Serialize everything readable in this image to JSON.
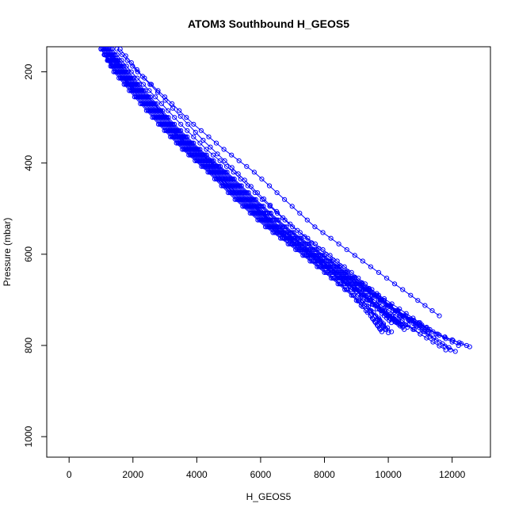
{
  "chart_data": {
    "type": "line",
    "title": "ATOM3 Southbound H_GEOS5",
    "xlabel": "H_GEOS5",
    "ylabel": "Pressure (mbar)",
    "xlim": [
      -700,
      13200
    ],
    "ylim": [
      1045,
      145
    ],
    "y_reversed": true,
    "x_ticks": [
      0,
      2000,
      4000,
      6000,
      8000,
      10000,
      12000
    ],
    "y_ticks": [
      200,
      400,
      600,
      800,
      1000
    ],
    "grid": false,
    "legend": "none",
    "series_color": "#0000ff",
    "markers": "open-circle",
    "series": [
      {
        "x": [
          1000,
          1500,
          2200,
          2950,
          3700,
          4500,
          5400,
          6350,
          7350,
          8400,
          9500,
          10500,
          11500,
          12550
        ],
        "y": [
          150,
          200,
          255,
          315,
          370,
          420,
          480,
          540,
          590,
          640,
          690,
          735,
          775,
          803
        ]
      },
      {
        "x": [
          1050,
          1550,
          2250,
          3000,
          3750,
          4550,
          5450,
          6400,
          7400,
          8450,
          9550,
          10550,
          11550,
          12450
        ],
        "y": [
          150,
          200,
          255,
          315,
          370,
          420,
          480,
          540,
          590,
          640,
          690,
          735,
          775,
          800
        ]
      },
      {
        "x": [
          1100,
          1650,
          2350,
          3100,
          3900,
          4700,
          5600,
          6550,
          7500,
          8500,
          9550,
          10500,
          11300,
          12100
        ],
        "y": [
          150,
          200,
          255,
          315,
          370,
          420,
          480,
          540,
          590,
          640,
          690,
          735,
          780,
          813
        ]
      },
      {
        "x": [
          1150,
          1700,
          2400,
          3150,
          3950,
          4800,
          5700,
          6600,
          7550,
          8550,
          9500,
          10450,
          11250,
          11950
        ],
        "y": [
          150,
          200,
          255,
          315,
          370,
          420,
          480,
          540,
          590,
          640,
          690,
          735,
          775,
          810
        ]
      },
      {
        "x": [
          1000,
          1450,
          2100,
          2850,
          3600,
          4400,
          5300,
          6250,
          7250,
          8200,
          9200,
          10100,
          11000,
          11800
        ],
        "y": [
          150,
          200,
          255,
          315,
          370,
          420,
          480,
          540,
          590,
          640,
          690,
          735,
          775,
          810
        ]
      },
      {
        "x": [
          1200,
          1750,
          2450,
          3200,
          4000,
          4850,
          5750,
          6700,
          7650,
          8600,
          9550,
          10450,
          11250
        ],
        "y": [
          150,
          200,
          255,
          315,
          370,
          420,
          480,
          540,
          590,
          640,
          690,
          735,
          770
        ]
      },
      {
        "x": [
          1100,
          1600,
          2300,
          3050,
          3850,
          4650,
          5550,
          6500,
          7450,
          8400,
          9350,
          10250,
          11000
        ],
        "y": [
          150,
          200,
          255,
          315,
          370,
          420,
          480,
          540,
          590,
          640,
          690,
          735,
          775
        ]
      },
      {
        "x": [
          1250,
          1800,
          2500,
          3250,
          4050,
          4900,
          5800,
          6750,
          7700,
          8650,
          9600,
          10450,
          11150
        ],
        "y": [
          150,
          200,
          255,
          315,
          370,
          420,
          480,
          540,
          590,
          640,
          690,
          735,
          770
        ]
      },
      {
        "x": [
          1000,
          1500,
          2150,
          2900,
          3650,
          4450,
          5350,
          6300,
          7300,
          8250,
          9200,
          10050,
          10600
        ],
        "y": [
          150,
          200,
          255,
          315,
          370,
          420,
          480,
          540,
          590,
          640,
          690,
          735,
          760
        ]
      },
      {
        "x": [
          1150,
          1650,
          2350,
          3100,
          3900,
          4700,
          5600,
          6500,
          7450,
          8350,
          9250,
          10000,
          10500
        ],
        "y": [
          150,
          200,
          255,
          315,
          370,
          420,
          480,
          540,
          590,
          640,
          690,
          735,
          765
        ]
      },
      {
        "x": [
          1050,
          1550,
          2200,
          2950,
          3700,
          4500,
          5400,
          6350,
          7300,
          8250,
          9150,
          9900,
          10400
        ],
        "y": [
          150,
          200,
          255,
          315,
          370,
          420,
          480,
          540,
          590,
          640,
          690,
          730,
          755
        ]
      },
      {
        "x": [
          1200,
          1700,
          2400,
          3150,
          3950,
          4750,
          5650,
          6550,
          7500,
          8400,
          9300,
          9950,
          10300
        ],
        "y": [
          150,
          200,
          255,
          315,
          370,
          420,
          480,
          540,
          590,
          640,
          690,
          730,
          750
        ]
      },
      {
        "x": [
          1000,
          1450,
          2100,
          2850,
          3600,
          4400,
          5250,
          6200,
          7150,
          8050,
          8900,
          9600,
          10100
        ],
        "y": [
          150,
          200,
          255,
          315,
          370,
          420,
          480,
          540,
          590,
          640,
          690,
          735,
          770
        ]
      },
      {
        "x": [
          1100,
          1600,
          2300,
          3050,
          3800,
          4600,
          5500,
          6450,
          7350,
          8200,
          9050,
          9700,
          10000
        ],
        "y": [
          150,
          200,
          255,
          315,
          370,
          420,
          480,
          540,
          590,
          640,
          690,
          740,
          772
        ]
      },
      {
        "x": [
          1050,
          1500,
          2200,
          2950,
          3700,
          4500,
          5350,
          6300,
          7200,
          8100,
          8900,
          9500,
          9800
        ],
        "y": [
          150,
          200,
          255,
          315,
          370,
          420,
          480,
          540,
          590,
          640,
          690,
          740,
          770
        ]
      },
      {
        "x": [
          1250,
          1750,
          2450,
          3200,
          4000,
          4800,
          5700,
          6600,
          7500,
          8400,
          9200,
          9800,
          10100
        ],
        "y": [
          150,
          200,
          255,
          315,
          370,
          420,
          480,
          540,
          590,
          640,
          690,
          730,
          750
        ]
      },
      {
        "x": [
          1150,
          1650,
          2350,
          3100,
          3850,
          4650,
          5550,
          6450,
          7350,
          8250,
          9050,
          9600,
          9900
        ],
        "y": [
          150,
          200,
          255,
          315,
          370,
          420,
          480,
          540,
          590,
          640,
          690,
          735,
          765
        ]
      },
      {
        "x": [
          1300,
          1850,
          2550,
          3300,
          4100,
          4950,
          5850,
          6800,
          7750,
          8700,
          9650,
          10500,
          11400,
          12200
        ],
        "y": [
          150,
          200,
          255,
          315,
          370,
          420,
          480,
          540,
          590,
          640,
          690,
          735,
          770,
          800
        ]
      },
      {
        "x": [
          1000,
          1400,
          2050,
          2800,
          3550,
          4350,
          5200,
          6150,
          7100,
          8000,
          8850,
          9450,
          9750
        ],
        "y": [
          150,
          200,
          255,
          315,
          370,
          420,
          480,
          540,
          590,
          640,
          690,
          735,
          765
        ]
      },
      {
        "x": [
          1100,
          1600,
          2250,
          3000,
          3800,
          4600,
          5450,
          6400,
          7350,
          8300,
          9200,
          9950,
          10450
        ],
        "y": [
          150,
          200,
          255,
          315,
          370,
          420,
          480,
          540,
          590,
          640,
          690,
          735,
          760
        ]
      },
      {
        "x": [
          1500,
          2150,
          3000,
          3900,
          4850,
          5800,
          6750,
          7700,
          8700,
          9700,
          10700,
          11600
        ],
        "y": [
          150,
          200,
          255,
          315,
          370,
          420,
          480,
          540,
          590,
          640,
          690,
          735
        ]
      },
      {
        "x": [
          1200,
          1750,
          2450,
          3250,
          4050,
          4900,
          5800,
          6750,
          7700,
          8650,
          9550,
          10350,
          10950
        ],
        "y": [
          150,
          200,
          255,
          315,
          370,
          420,
          480,
          540,
          590,
          640,
          690,
          735,
          750
        ]
      },
      {
        "x": [
          1600,
          2300,
          3250,
          4200,
          5100,
          5900,
          6700,
          7600,
          8500,
          9400,
          10350,
          11200
        ],
        "y": [
          150,
          210,
          280,
          350,
          410,
          465,
          520,
          575,
          625,
          675,
          720,
          760
        ]
      },
      {
        "x": [
          1350,
          1950,
          2700,
          3500,
          4300,
          5150,
          6050,
          7000,
          7950,
          8850,
          9700,
          10400
        ],
        "y": [
          150,
          200,
          255,
          315,
          370,
          420,
          480,
          540,
          590,
          640,
          690,
          735
        ]
      }
    ]
  }
}
